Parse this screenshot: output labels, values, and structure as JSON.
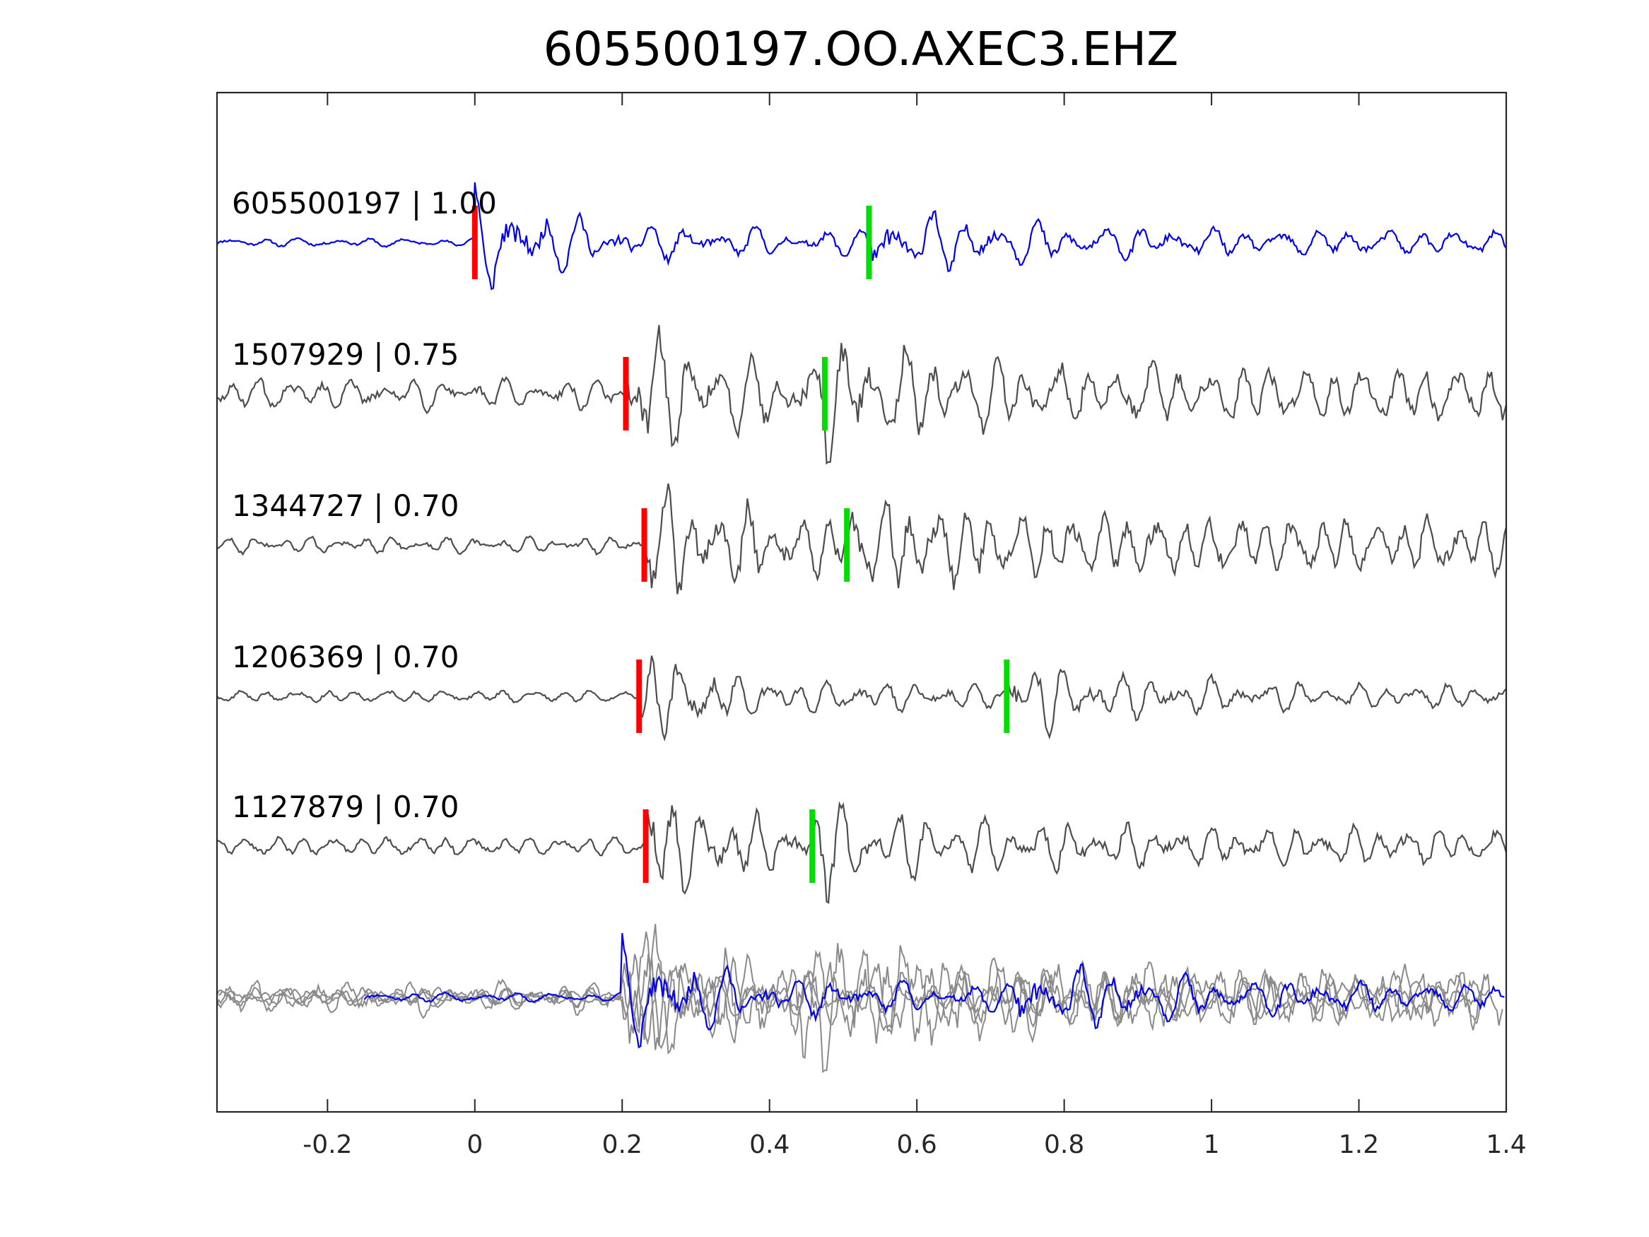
{
  "chart_data": {
    "type": "line",
    "title": "605500197.OO.AXEC3.EHZ",
    "xlabel": "",
    "ylabel": "",
    "xlim": [
      -0.35,
      1.4
    ],
    "xticks": [
      -0.2,
      0,
      0.2,
      0.4,
      0.6,
      0.8,
      1,
      1.2,
      1.4
    ],
    "xtick_labels": [
      "-0.2",
      "0",
      "0.2",
      "0.4",
      "0.6",
      "0.8",
      "1",
      "1.2",
      "1.4"
    ],
    "grid": false,
    "legend": "none",
    "colors": {
      "master": "#0000ee",
      "template": "#4d4d4d",
      "stack_template": "#8a8a8a",
      "p_pick": "#ff0000",
      "s_pick": "#00dd00",
      "axes": "#262626"
    },
    "series": [
      {
        "label": "605500197 | 1.00",
        "role": "master",
        "p_pick": 0.0,
        "s_pick": 0.535
      },
      {
        "label": "1507929 | 0.75",
        "role": "template",
        "p_pick": 0.205,
        "s_pick": 0.475
      },
      {
        "label": "1344727 | 0.70",
        "role": "template",
        "p_pick": 0.23,
        "s_pick": 0.505
      },
      {
        "label": "1206369 | 0.70",
        "role": "template",
        "p_pick": 0.223,
        "s_pick": 0.722
      },
      {
        "label": "1127879 | 0.70",
        "role": "template",
        "p_pick": 0.232,
        "s_pick": 0.458
      }
    ],
    "stack_row": "overlay"
  }
}
